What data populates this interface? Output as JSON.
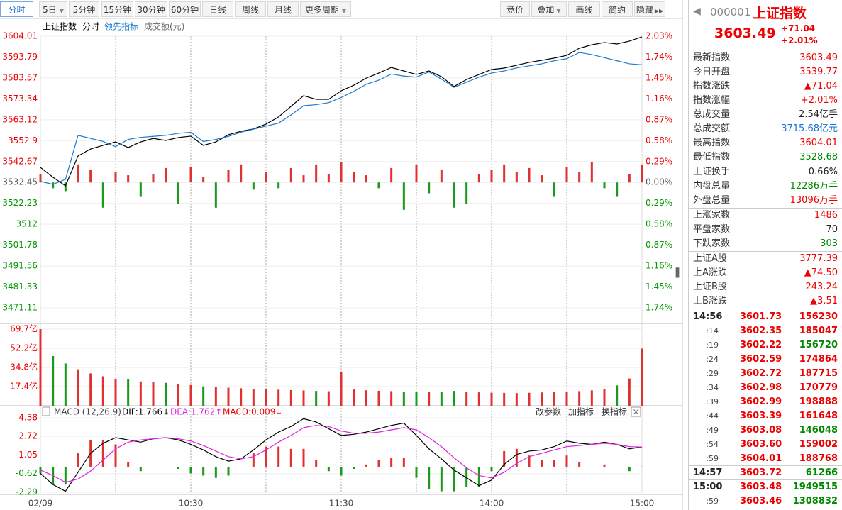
{
  "toolbar": {
    "periods": [
      "分时",
      "5日",
      "5分钟",
      "15分钟",
      "30分钟",
      "60分钟",
      "日线",
      "周线",
      "月线",
      "更多周期"
    ],
    "tools": [
      "竞价",
      "叠加",
      "画线",
      "简约",
      "隐藏"
    ]
  },
  "chart_data": [
    {
      "type": "line",
      "title": "上证指数",
      "subtitle": "成交额(元)",
      "ylim": [
        3471.11,
        3604.01
      ],
      "yticks": [
        3604.01,
        3593.79,
        3583.57,
        3573.34,
        3563.12,
        3552.9,
        3542.67,
        3532.45,
        3522.23,
        3512.0,
        3501.78,
        3491.56,
        3481.33,
        3471.11
      ],
      "y2lim": [
        -1.74,
        2.03
      ],
      "y2ticks": [
        {
          "value": 2.03,
          "label": "2.03%"
        },
        {
          "value": 1.74,
          "label": "1.74%"
        },
        {
          "value": 1.45,
          "label": "1.45%"
        },
        {
          "value": 1.16,
          "label": "1.16%"
        },
        {
          "value": 0.87,
          "label": "0.87%"
        },
        {
          "value": 0.58,
          "label": "0.58%"
        },
        {
          "value": 0.29,
          "label": "0.29%"
        },
        {
          "value": 0,
          "label": "0.00%"
        },
        {
          "value": -0.29,
          "label": "0.29%"
        },
        {
          "value": -0.58,
          "label": "0.58%"
        },
        {
          "value": -0.87,
          "label": "0.87%"
        },
        {
          "value": -1.16,
          "label": "1.16%"
        },
        {
          "value": -1.45,
          "label": "1.45%"
        },
        {
          "value": -1.74,
          "label": "1.74%"
        }
      ],
      "grid": true,
      "series": [
        {
          "name": "分时",
          "color": "#000000",
          "values": [
            3539.8,
            3535,
            3530.8,
            3545.4,
            3548.8,
            3550.6,
            3552.3,
            3549.5,
            3552.3,
            3554,
            3553,
            3554.4,
            3555.1,
            3550.6,
            3552.3,
            3555.8,
            3557.5,
            3558.6,
            3561,
            3564.5,
            3569.7,
            3574.9,
            3573.1,
            3573.1,
            3577.3,
            3580,
            3583.5,
            3586,
            3588.7,
            3587,
            3585.3,
            3587,
            3584.2,
            3579.4,
            3582.8,
            3585.3,
            3587.7,
            3588.4,
            3589.8,
            3591.2,
            3592.2,
            3593.3,
            3594.6,
            3598.1,
            3599.8,
            3600.9,
            3600.2,
            3601.6,
            3603.7
          ]
        },
        {
          "name": "领先指标",
          "color": "#1c7bd0",
          "values": [
            3533,
            3531.5,
            3534,
            3555.5,
            3554,
            3552.5,
            3550,
            3553.5,
            3554.5,
            3555,
            3555.5,
            3556.5,
            3557,
            3552.5,
            3553.5,
            3555,
            3557,
            3558.5,
            3560,
            3561.5,
            3565.5,
            3570,
            3570.5,
            3571.5,
            3574,
            3577,
            3580.5,
            3582.5,
            3585.5,
            3584.5,
            3584,
            3586.5,
            3583,
            3579,
            3581.5,
            3584,
            3586,
            3587,
            3588.5,
            3589.5,
            3590.5,
            3592,
            3593,
            3596,
            3595,
            3593.5,
            3592,
            3590.5,
            3590
          ]
        },
        {
          "type": "bar",
          "axis": "y2",
          "color": "#e03030",
          "color_down": "#1a9a1a",
          "values": [
            0.12,
            -0.08,
            -0.12,
            0.25,
            0.18,
            -0.35,
            0.15,
            0.1,
            -0.2,
            0.12,
            0.2,
            -0.3,
            0.22,
            0.08,
            -0.35,
            0.18,
            0.25,
            -0.1,
            0.15,
            -0.08,
            0.2,
            0.1,
            0.25,
            0.12,
            0.28,
            0.15,
            0.1,
            -0.08,
            0.2,
            -0.38,
            0.25,
            -0.15,
            0.18,
            -0.35,
            -0.3,
            0.12,
            0.18,
            0.25,
            0.15,
            0.2,
            0.1,
            -0.2,
            0.22,
            0.15,
            0.28,
            -0.08,
            -0.2,
            0.12,
            0.25
          ]
        }
      ]
    },
    {
      "type": "bar",
      "color": "#e03030",
      "color_down": "#1a9a1a",
      "ylim": [
        0,
        69.7
      ],
      "yticks": [
        {
          "value": 69.7,
          "label": "69.7亿"
        },
        {
          "value": 52.2,
          "label": "52.2亿"
        },
        {
          "value": 34.8,
          "label": "34.8亿"
        },
        {
          "value": 17.4,
          "label": "17.4亿"
        }
      ],
      "values": [
        69.7,
        45.2,
        38.5,
        33.1,
        29.4,
        26.8,
        24.6,
        23.9,
        22.1,
        21.5,
        20.8,
        19.7,
        18.9,
        17.6,
        17.2,
        16.4,
        15.9,
        15.5,
        15.1,
        14.6,
        14.2,
        13.9,
        13.5,
        13.2,
        31,
        14.8,
        14.1,
        13.6,
        13.3,
        12.9,
        12.7,
        12.4,
        12.8,
        13.5,
        12.6,
        12.2,
        11.9,
        11.7,
        11.5,
        11.8,
        12.1,
        12.4,
        12.9,
        13.3,
        14,
        15.2,
        18.5,
        24.8,
        52
      ]
    },
    {
      "type": "macd",
      "title": "MACD (12,26,9)",
      "labels": [
        "DIF:1.766↓",
        "DEA:1.762↑",
        "MACD:0.009↓"
      ],
      "tools": [
        "改参数",
        "加指标",
        "换指标"
      ],
      "ylim": [
        -2.29,
        4.38
      ],
      "yticks": [
        4.38,
        2.72,
        1.05,
        -0.62,
        -2.29
      ],
      "categories": [
        "02/09",
        null,
        null,
        null,
        null,
        null,
        null,
        null,
        null,
        null,
        null,
        null,
        "10:30",
        null,
        null,
        null,
        null,
        null,
        null,
        null,
        null,
        null,
        null,
        null,
        "11:30",
        null,
        null,
        null,
        null,
        null,
        null,
        null,
        null,
        null,
        null,
        null,
        "14:00",
        null,
        null,
        null,
        null,
        null,
        null,
        null,
        null,
        null,
        null,
        null,
        "15:00"
      ],
      "series": [
        {
          "color": "#000000",
          "values": [
            -0.6,
            -1.6,
            -2.2,
            -0.5,
            1.2,
            2.1,
            2.6,
            2.4,
            2.2,
            2.5,
            2.6,
            2.4,
            2,
            1.5,
            0.9,
            0.5,
            0.7,
            1.5,
            2.4,
            3.1,
            3.6,
            4.3,
            4,
            3.4,
            2.8,
            2.9,
            3.1,
            3.4,
            3.7,
            3.9,
            2.8,
            1.6,
            0.7,
            -0.3,
            -1,
            -1.7,
            -1.2,
            0.2,
            1.1,
            1.4,
            1.5,
            1.8,
            2.3,
            2.1,
            2,
            2.2,
            2,
            1.6,
            1.77
          ]
        },
        {
          "color": "#e020e0",
          "values": [
            -0.3,
            -0.8,
            -1.4,
            -1.1,
            -0.4,
            0.6,
            1.6,
            2.2,
            2.4,
            2.5,
            2.6,
            2.5,
            2.3,
            1.9,
            1.4,
            0.9,
            0.7,
            0.9,
            1.5,
            2.2,
            2.8,
            3.5,
            3.7,
            3.6,
            3.2,
            3,
            3,
            3.1,
            3.3,
            3.5,
            3.3,
            2.6,
            1.8,
            0.8,
            -0.1,
            -0.8,
            -1,
            -0.5,
            0.3,
            0.9,
            1.2,
            1.5,
            1.8,
            1.9,
            2,
            2.1,
            2,
            1.8,
            1.76
          ]
        },
        {
          "type": "bar",
          "color": "#e03030",
          "color_down": "#1a9a1a",
          "values": [
            -0.6,
            -1.6,
            -1.6,
            1.2,
            2.4,
            2.4,
            2,
            0.4,
            -0.4,
            0,
            0,
            -0.2,
            -0.6,
            -0.8,
            -1,
            -0.8,
            0,
            1.2,
            1.8,
            1.8,
            1.6,
            1.6,
            0.6,
            -0.4,
            -0.8,
            -0.2,
            0.2,
            0.6,
            0.8,
            0.8,
            -1,
            -2,
            -2.2,
            -2.2,
            -1.8,
            -1.8,
            -0.4,
            1.4,
            1.6,
            1,
            0.6,
            0.6,
            1,
            0.4,
            0,
            0.2,
            0,
            -0.4,
            0.01
          ]
        }
      ]
    }
  ],
  "quote": {
    "code": "000001",
    "name": "上证指数",
    "price": "3603.49",
    "change": "+71.04",
    "pct": "+2.01%",
    "groups": [
      [
        [
          "最新指数",
          "3603.49"
        ],
        [
          "今日开盘",
          "3539.77"
        ],
        [
          "指数涨跌",
          "▲71.04"
        ],
        [
          "指数涨幅",
          "+2.01%"
        ],
        [
          "总成交量",
          "2.54亿手"
        ],
        [
          "总成交额",
          "3715.68亿元"
        ],
        [
          "最高指数",
          "3604.01"
        ],
        [
          "最低指数",
          "3528.68"
        ]
      ],
      [
        [
          "上证换手",
          "0.66%"
        ],
        [
          "内盘总量",
          "12286万手"
        ],
        [
          "外盘总量",
          "13096万手"
        ]
      ],
      [
        [
          "上涨家数",
          "1486"
        ],
        [
          "平盘家数",
          "70"
        ],
        [
          "下跌家数",
          "303"
        ]
      ],
      [
        [
          "上证A股",
          "3777.39"
        ],
        [
          "上A涨跌",
          "▲74.50"
        ],
        [
          "上证B股",
          "243.24"
        ],
        [
          "上B涨跌",
          "▲3.51"
        ]
      ]
    ],
    "ticks": [
      [
        "14:56",
        "3601.73",
        "156230"
      ],
      [
        ":14",
        "3602.35",
        "185047"
      ],
      [
        ":19",
        "3602.22",
        "156720"
      ],
      [
        ":24",
        "3602.59",
        "174864"
      ],
      [
        ":29",
        "3602.72",
        "187715"
      ],
      [
        ":34",
        "3602.98",
        "170779"
      ],
      [
        ":39",
        "3602.99",
        "198888"
      ],
      [
        ":44",
        "3603.39",
        "161648"
      ],
      [
        ":49",
        "3603.08",
        "146048"
      ],
      [
        ":54",
        "3603.60",
        "159002"
      ],
      [
        ":59",
        "3604.01",
        "188768"
      ],
      [
        "14:57",
        "3603.72",
        "61266"
      ],
      [
        "15:00",
        "3603.48",
        "1949515"
      ],
      [
        ":59",
        "3603.46",
        "1308832"
      ]
    ]
  }
}
